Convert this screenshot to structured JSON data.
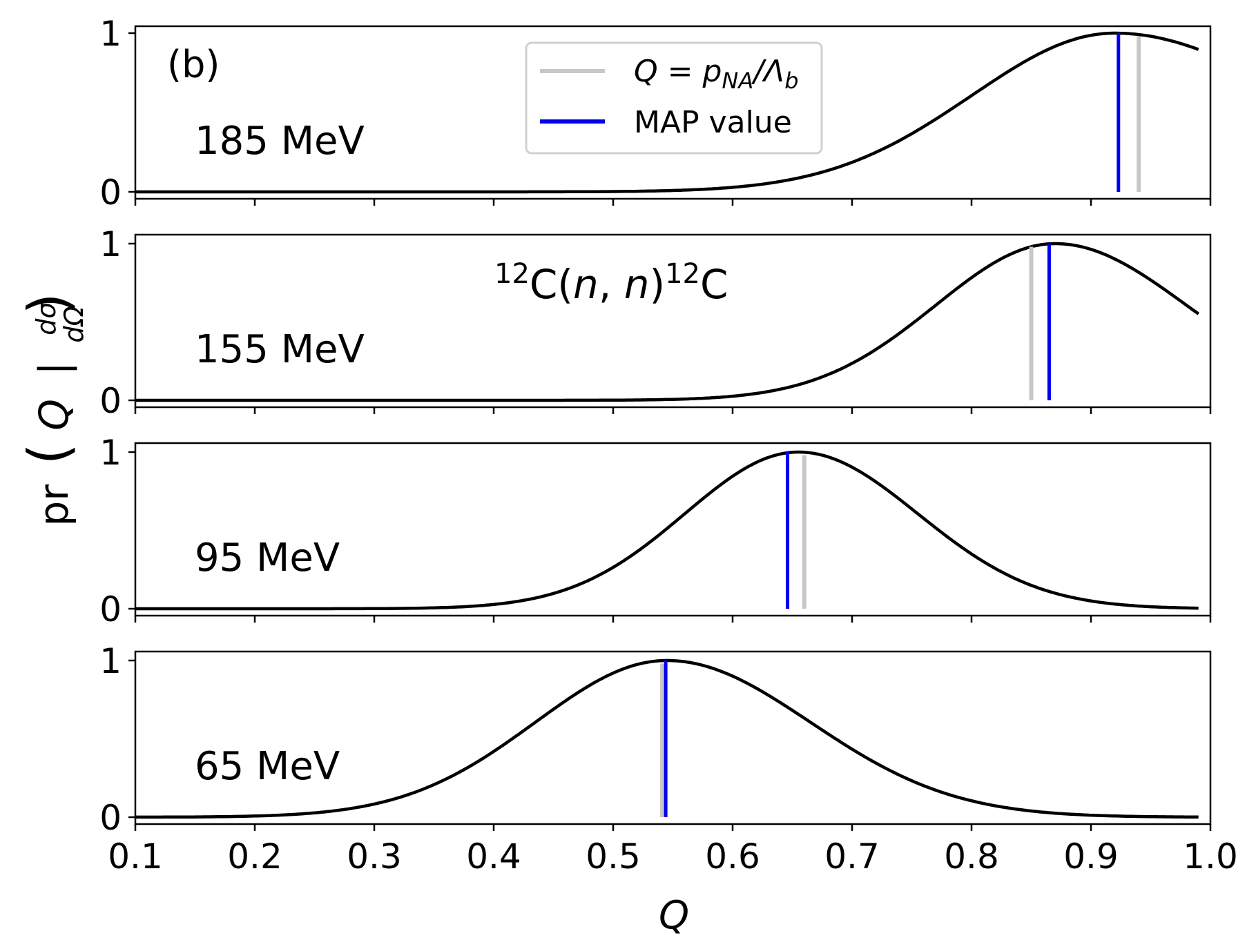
{
  "chart_data": {
    "type": "line",
    "panel_tag": "(b)",
    "reaction": {
      "pre_sup": "12",
      "body": "C(",
      "n1": "n",
      "comma": ", ",
      "n2": "n",
      "close": ")",
      "post_sup": "12",
      "tail": "C"
    },
    "xlabel": "Q",
    "ylabel": {
      "prefix": "pr",
      "var": "Q",
      "bar": "|",
      "num": "dσ",
      "den": "dΩ"
    },
    "xlim": [
      0.1,
      1.0
    ],
    "xticks": [
      "0.1",
      "0.2",
      "0.3",
      "0.4",
      "0.5",
      "0.6",
      "0.7",
      "0.8",
      "0.9",
      "1.0"
    ],
    "ylim": [
      0,
      1
    ],
    "yticks": [
      "0",
      "1"
    ],
    "legend": {
      "gray": {
        "lhs": "Q",
        "eq": " = ",
        "p": "p",
        "sub": "NA",
        "div": "/Λ",
        "sub2": "b"
      },
      "blue": "MAP value"
    },
    "colors": {
      "curve": "#000000",
      "map": "#0000ee",
      "ratio": "#c8c8c8"
    },
    "panels": [
      {
        "energy": "185 MeV",
        "peak": 0.92,
        "sigma_left": 0.12,
        "sigma_right": 0.15,
        "map_value": 0.923,
        "ratio_value": 0.94
      },
      {
        "energy": "155 MeV",
        "peak": 0.87,
        "sigma_left": 0.1,
        "sigma_right": 0.11,
        "map_value": 0.865,
        "ratio_value": 0.85
      },
      {
        "energy": "95 MeV",
        "peak": 0.655,
        "sigma_left": 0.095,
        "sigma_right": 0.1,
        "map_value": 0.646,
        "ratio_value": 0.66
      },
      {
        "energy": "65 MeV",
        "peak": 0.545,
        "sigma_left": 0.11,
        "sigma_right": 0.12,
        "map_value": 0.544,
        "ratio_value": 0.541
      }
    ]
  }
}
